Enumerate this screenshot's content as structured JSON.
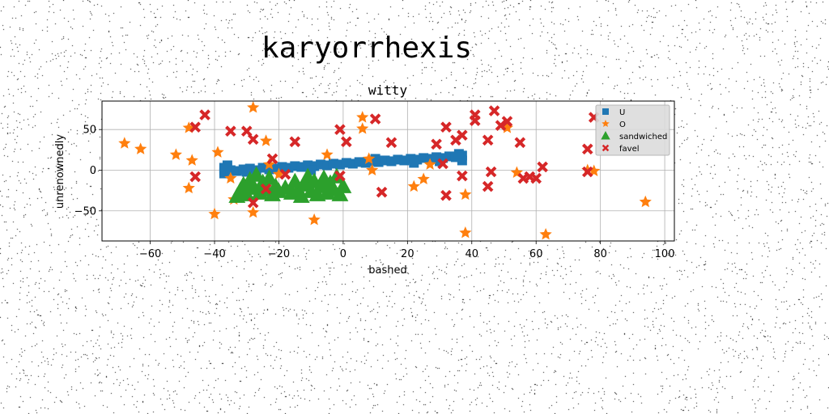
{
  "chart_data": {
    "type": "scatter",
    "suptitle": "karyorrhexis",
    "title": "witty",
    "xlabel": "bashed",
    "ylabel": "unrenownedly",
    "xlim": [
      -75,
      103
    ],
    "ylim": [
      -87,
      85
    ],
    "xticks": [
      -60,
      -40,
      -20,
      0,
      20,
      40,
      60,
      80,
      100
    ],
    "yticks": [
      -50,
      0,
      50
    ],
    "grid": true,
    "legend_position": "top-right",
    "series": [
      {
        "name": "U",
        "marker": "square",
        "color": "#1f77b4",
        "points": [
          [
            -37,
            0
          ],
          [
            -37,
            3
          ],
          [
            -37,
            -4
          ],
          [
            -35,
            0
          ],
          [
            -33,
            -1
          ],
          [
            -31,
            1
          ],
          [
            -29,
            2
          ],
          [
            -27,
            0
          ],
          [
            -25,
            3
          ],
          [
            -23,
            1
          ],
          [
            -21,
            2
          ],
          [
            -19,
            4
          ],
          [
            -17,
            3
          ],
          [
            -15,
            5
          ],
          [
            -13,
            4
          ],
          [
            -11,
            6
          ],
          [
            -9,
            5
          ],
          [
            -7,
            7
          ],
          [
            -5,
            6
          ],
          [
            -3,
            8
          ],
          [
            -1,
            7
          ],
          [
            1,
            9
          ],
          [
            3,
            8
          ],
          [
            5,
            10
          ],
          [
            7,
            9
          ],
          [
            9,
            11
          ],
          [
            11,
            10
          ],
          [
            13,
            12
          ],
          [
            15,
            11
          ],
          [
            17,
            13
          ],
          [
            19,
            12
          ],
          [
            21,
            14
          ],
          [
            23,
            13
          ],
          [
            25,
            15
          ],
          [
            27,
            14
          ],
          [
            29,
            16
          ],
          [
            31,
            15
          ],
          [
            33,
            17
          ],
          [
            35,
            16
          ],
          [
            37,
            18
          ],
          [
            37,
            12
          ],
          [
            36,
            20
          ],
          [
            -36,
            6
          ],
          [
            -30,
            -2
          ],
          [
            10,
            14
          ],
          [
            22,
            9
          ],
          [
            30,
            11
          ],
          [
            -10,
            0
          ]
        ]
      },
      {
        "name": "O",
        "marker": "star",
        "color": "#ff7f0e",
        "points": [
          [
            -68,
            33
          ],
          [
            -63,
            26
          ],
          [
            -52,
            19
          ],
          [
            -48,
            52
          ],
          [
            -47,
            12
          ],
          [
            -39,
            22
          ],
          [
            -35,
            -10
          ],
          [
            -34,
            -36
          ],
          [
            -40,
            -54
          ],
          [
            -28,
            77
          ],
          [
            -28,
            -52
          ],
          [
            -24,
            36
          ],
          [
            -23,
            7
          ],
          [
            -9,
            -61
          ],
          [
            -5,
            19
          ],
          [
            6,
            65
          ],
          [
            6,
            51
          ],
          [
            8,
            14
          ],
          [
            9,
            0
          ],
          [
            22,
            -20
          ],
          [
            25,
            -11
          ],
          [
            27,
            7
          ],
          [
            38,
            -30
          ],
          [
            38,
            -77
          ],
          [
            51,
            52
          ],
          [
            54,
            -3
          ],
          [
            63,
            -79
          ],
          [
            76,
            0
          ],
          [
            78,
            -1
          ],
          [
            94,
            -39
          ],
          [
            -20,
            -5
          ],
          [
            -48,
            -22
          ]
        ]
      },
      {
        "name": "sandwiched",
        "marker": "triangle",
        "color": "#2ca02c",
        "points": [
          [
            -32,
            -25
          ],
          [
            -31,
            -18
          ],
          [
            -30,
            -30
          ],
          [
            -29,
            -12
          ],
          [
            -28,
            -22
          ],
          [
            -27,
            -6
          ],
          [
            -26,
            -28
          ],
          [
            -25,
            -15
          ],
          [
            -24,
            -24
          ],
          [
            -23,
            -10
          ],
          [
            -22,
            -30
          ],
          [
            -21,
            -20
          ],
          [
            -16,
            -28
          ],
          [
            -15,
            -14
          ],
          [
            -14,
            -24
          ],
          [
            -13,
            -32
          ],
          [
            -12,
            -18
          ],
          [
            -11,
            -8
          ],
          [
            -10,
            -26
          ],
          [
            -9,
            -14
          ],
          [
            -8,
            -30
          ],
          [
            -7,
            -20
          ],
          [
            -6,
            -10
          ],
          [
            -5,
            -28
          ],
          [
            -4,
            -16
          ],
          [
            -3,
            -24
          ],
          [
            -2,
            -8
          ],
          [
            -1,
            -30
          ],
          [
            0,
            -20
          ],
          [
            -18,
            -22
          ],
          [
            -20,
            -26
          ],
          [
            -33,
            -32
          ]
        ]
      },
      {
        "name": "favel",
        "marker": "x",
        "color": "#d62728",
        "points": [
          [
            -43,
            68
          ],
          [
            -46,
            53
          ],
          [
            -46,
            -8
          ],
          [
            -35,
            48
          ],
          [
            -30,
            48
          ],
          [
            -28,
            38
          ],
          [
            -28,
            -40
          ],
          [
            -24,
            -23
          ],
          [
            -22,
            14
          ],
          [
            -18,
            -5
          ],
          [
            -15,
            35
          ],
          [
            -1,
            50
          ],
          [
            1,
            35
          ],
          [
            -1,
            -7
          ],
          [
            10,
            63
          ],
          [
            12,
            -27
          ],
          [
            15,
            34
          ],
          [
            29,
            32
          ],
          [
            31,
            8
          ],
          [
            32,
            53
          ],
          [
            32,
            -31
          ],
          [
            35,
            37
          ],
          [
            37,
            43
          ],
          [
            37,
            -7
          ],
          [
            41,
            68
          ],
          [
            41,
            61
          ],
          [
            45,
            37
          ],
          [
            45,
            -20
          ],
          [
            46,
            -2
          ],
          [
            47,
            73
          ],
          [
            49,
            55
          ],
          [
            51,
            60
          ],
          [
            55,
            34
          ],
          [
            56,
            -10
          ],
          [
            58,
            -8
          ],
          [
            60,
            -10
          ],
          [
            62,
            4
          ],
          [
            76,
            26
          ],
          [
            76,
            -2
          ],
          [
            78,
            65
          ]
        ]
      }
    ]
  }
}
